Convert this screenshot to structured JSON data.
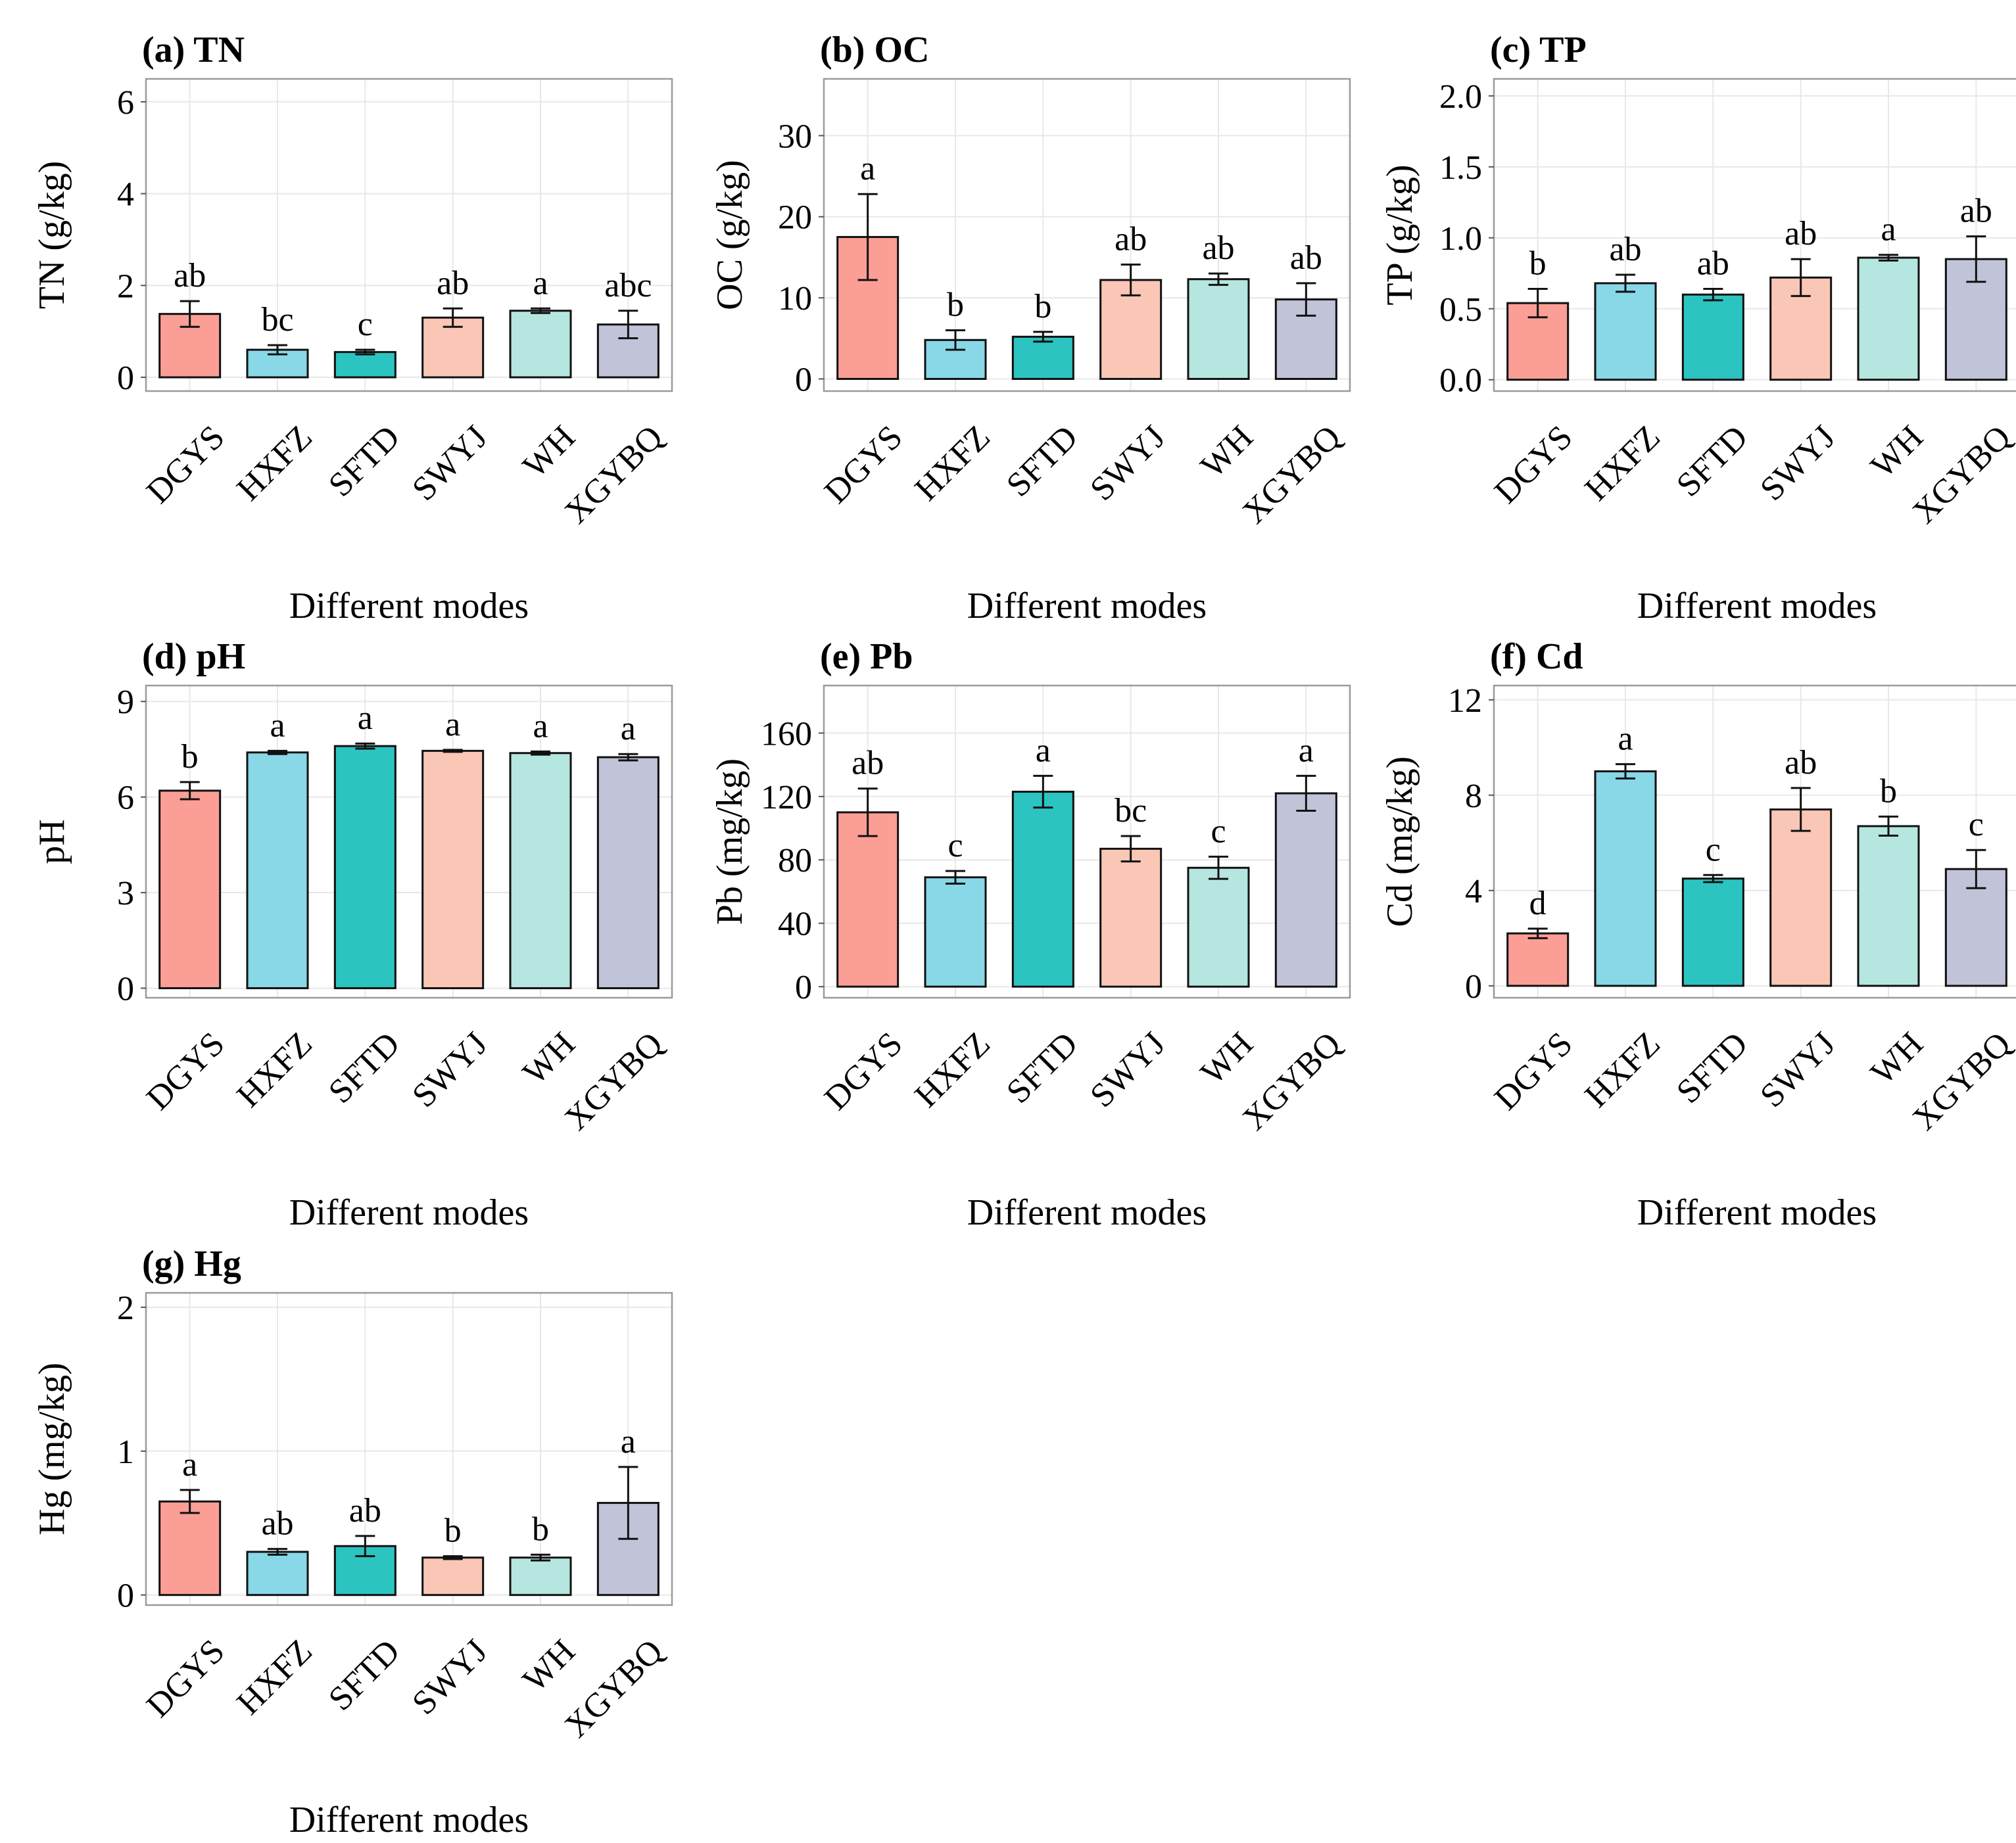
{
  "chart_data": {
    "type": "bar",
    "colors": [
      "#FA9E96",
      "#88D8E8",
      "#2CC4C1",
      "#FAC6B6",
      "#B6E6E0",
      "#C1C4D8"
    ],
    "panels": [
      {
        "title": "(a) TN",
        "ylabel": "TN (g/kg)",
        "xlabel": "Different modes",
        "ylim": [
          -0.3,
          6.5
        ],
        "yticks": [
          0,
          2,
          4,
          6
        ],
        "ytick_labels": [
          "0",
          "2",
          "4",
          "6"
        ],
        "categories": [
          "DGYS",
          "HXFZ",
          "SFTD",
          "SWYJ",
          "WH",
          "XGYBQ"
        ],
        "values": [
          1.38,
          0.6,
          0.55,
          1.3,
          1.45,
          1.15
        ],
        "errors": [
          0.28,
          0.1,
          0.05,
          0.2,
          0.05,
          0.3
        ],
        "letters": [
          "ab",
          "bc",
          "c",
          "ab",
          "a",
          "abc"
        ]
      },
      {
        "title": "(b) OC",
        "ylabel": "OC (g/kg)",
        "xlabel": "Different modes",
        "ylim": [
          -1.5,
          37
        ],
        "yticks": [
          0,
          10,
          20,
          30
        ],
        "ytick_labels": [
          "0",
          "10",
          "20",
          "30"
        ],
        "categories": [
          "DGYS",
          "HXFZ",
          "SFTD",
          "SWYJ",
          "WH",
          "XGYBQ"
        ],
        "values": [
          17.5,
          4.8,
          5.2,
          12.2,
          12.3,
          9.8
        ],
        "errors": [
          5.3,
          1.2,
          0.6,
          1.9,
          0.7,
          2.0
        ],
        "letters": [
          "a",
          "b",
          "b",
          "ab",
          "ab",
          "ab"
        ]
      },
      {
        "title": "(c) TP",
        "ylabel": "TP (g/kg)",
        "xlabel": "Different modes",
        "ylim": [
          -0.08,
          2.12
        ],
        "yticks": [
          0,
          0.5,
          1.0,
          1.5,
          2.0
        ],
        "ytick_labels": [
          "0.0",
          "0.5",
          "1.0",
          "1.5",
          "2.0"
        ],
        "categories": [
          "DGYS",
          "HXFZ",
          "SFTD",
          "SWYJ",
          "WH",
          "XGYBQ"
        ],
        "values": [
          0.54,
          0.68,
          0.6,
          0.72,
          0.86,
          0.85
        ],
        "errors": [
          0.1,
          0.06,
          0.04,
          0.13,
          0.02,
          0.16
        ],
        "letters": [
          "b",
          "ab",
          "ab",
          "ab",
          "a",
          "ab"
        ]
      },
      {
        "title": "(d) pH",
        "ylabel": "pH",
        "xlabel": "Different modes",
        "ylim": [
          -0.3,
          9.5
        ],
        "yticks": [
          0,
          3,
          6,
          9
        ],
        "ytick_labels": [
          "0",
          "3",
          "6",
          "9"
        ],
        "categories": [
          "DGYS",
          "HXFZ",
          "SFTD",
          "SWYJ",
          "WH",
          "XGYBQ"
        ],
        "values": [
          6.2,
          7.4,
          7.6,
          7.45,
          7.38,
          7.25
        ],
        "errors": [
          0.27,
          0.05,
          0.08,
          0.03,
          0.05,
          0.1
        ],
        "letters": [
          "b",
          "a",
          "a",
          "a",
          "a",
          "a"
        ]
      },
      {
        "title": "(e) Pb",
        "ylabel": "Pb (mg/kg)",
        "xlabel": "Different modes",
        "ylim": [
          -7,
          190
        ],
        "yticks": [
          0,
          40,
          80,
          120,
          160
        ],
        "ytick_labels": [
          "0",
          "40",
          "80",
          "120",
          "160"
        ],
        "categories": [
          "DGYS",
          "HXFZ",
          "SFTD",
          "SWYJ",
          "WH",
          "XGYBQ"
        ],
        "values": [
          110,
          69,
          123,
          87,
          75,
          122
        ],
        "errors": [
          15,
          4,
          10,
          8,
          7,
          11
        ],
        "letters": [
          "ab",
          "c",
          "a",
          "bc",
          "c",
          "a"
        ]
      },
      {
        "title": "(f) Cd",
        "ylabel": "Cd (mg/kg)",
        "xlabel": "Different modes",
        "ylim": [
          -0.5,
          12.6
        ],
        "yticks": [
          0,
          4,
          8,
          12
        ],
        "ytick_labels": [
          "0",
          "4",
          "8",
          "12"
        ],
        "categories": [
          "DGYS",
          "HXFZ",
          "SFTD",
          "SWYJ",
          "WH",
          "XGYBQ"
        ],
        "values": [
          2.2,
          9.0,
          4.5,
          7.4,
          6.7,
          4.9
        ],
        "errors": [
          0.2,
          0.3,
          0.15,
          0.9,
          0.4,
          0.8
        ],
        "letters": [
          "d",
          "a",
          "c",
          "ab",
          "b",
          "c"
        ]
      },
      {
        "title": "(g) Hg",
        "ylabel": "Hg (mg/kg)",
        "xlabel": "Different modes",
        "ylim": [
          -0.07,
          2.1
        ],
        "yticks": [
          0,
          1,
          2
        ],
        "ytick_labels": [
          "0",
          "1",
          "2"
        ],
        "categories": [
          "DGYS",
          "HXFZ",
          "SFTD",
          "SWYJ",
          "WH",
          "XGYBQ"
        ],
        "values": [
          0.65,
          0.3,
          0.34,
          0.26,
          0.26,
          0.64
        ],
        "errors": [
          0.08,
          0.02,
          0.07,
          0.01,
          0.02,
          0.25
        ],
        "letters": [
          "a",
          "ab",
          "ab",
          "b",
          "b",
          "a"
        ]
      }
    ]
  }
}
